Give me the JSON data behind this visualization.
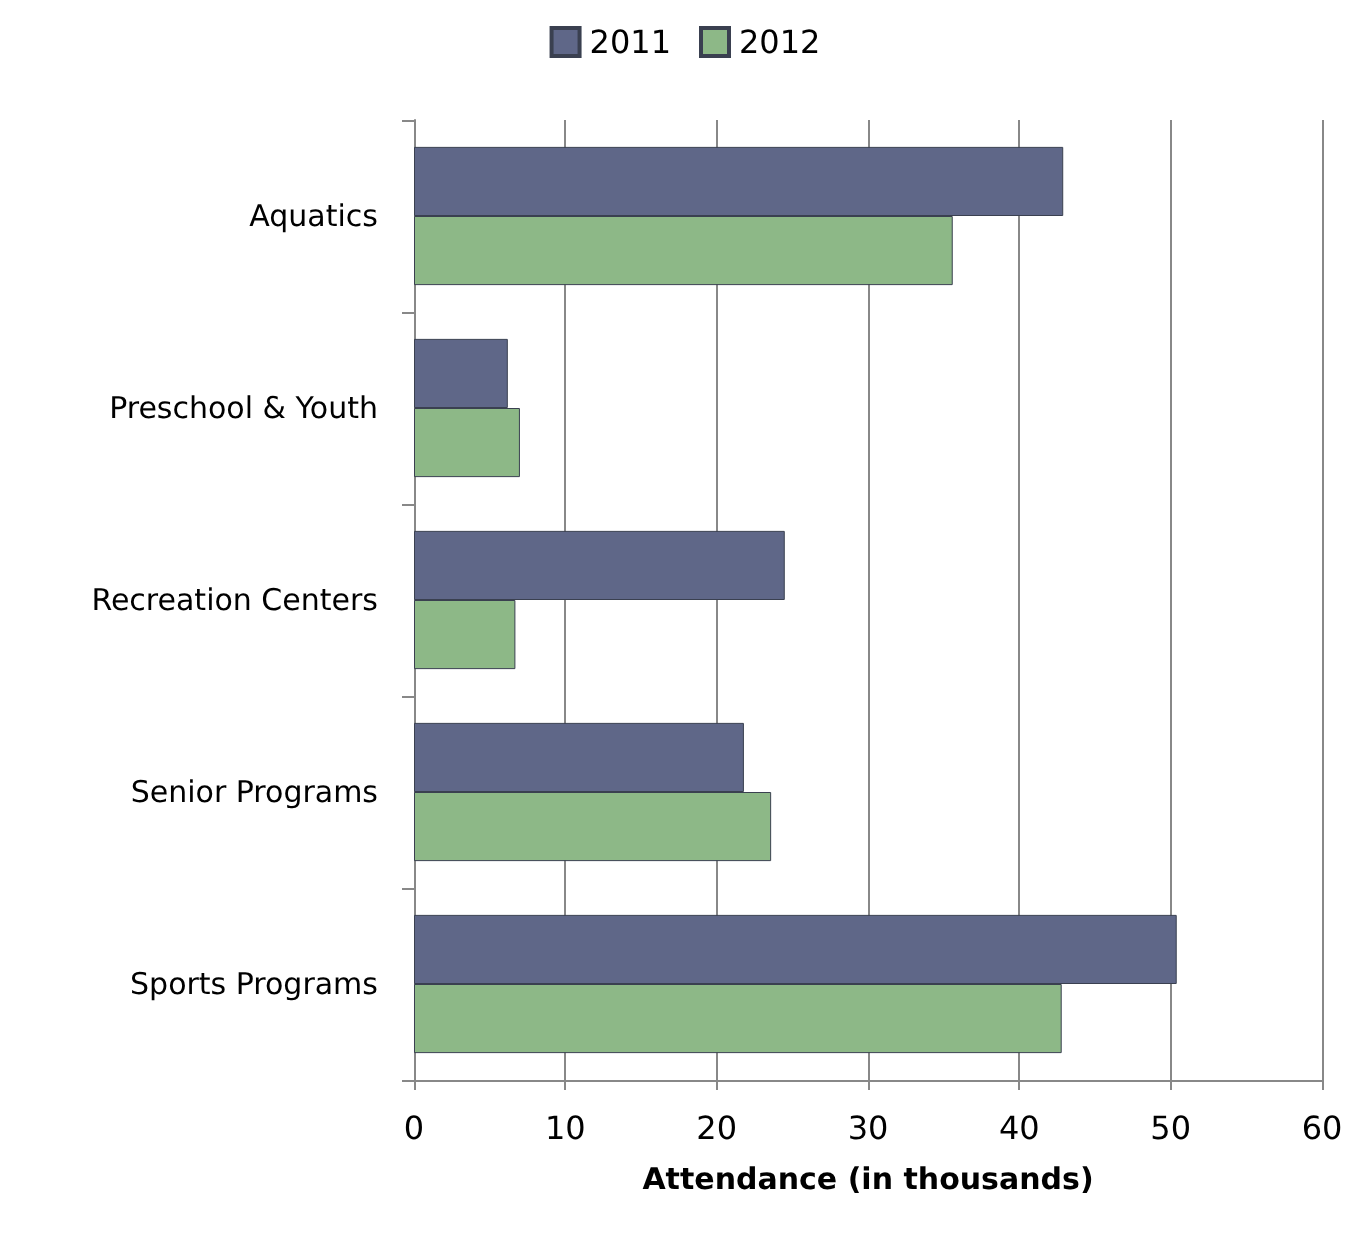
{
  "chart_data": {
    "type": "bar",
    "orientation": "horizontal",
    "xlabel": "Attendance (in thousands)",
    "categories": [
      "Aquatics",
      "Preschool & Youth",
      "Recreation Centers",
      "Senior Programs",
      "Sports Programs"
    ],
    "series": [
      {
        "name": "2011",
        "color": "#5f6788",
        "values": [
          42.9,
          6.2,
          24.5,
          21.8,
          50.4
        ]
      },
      {
        "name": "2012",
        "color": "#8db887",
        "values": [
          35.6,
          7.0,
          6.7,
          23.6,
          42.8
        ]
      }
    ],
    "xlim": [
      0,
      60
    ],
    "xticks": [
      0,
      10,
      20,
      30,
      40,
      50,
      60
    ],
    "grid": "x",
    "legend": "top"
  }
}
